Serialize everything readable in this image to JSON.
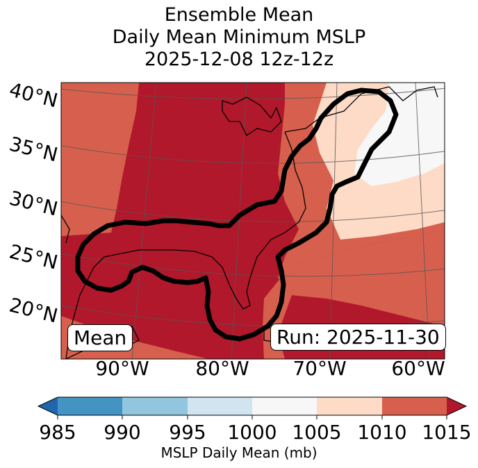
{
  "title": {
    "line1": "Ensemble Mean",
    "line2": "Daily Mean Minimum MSLP",
    "line3": "2025-12-08 12z-12z"
  },
  "map": {
    "lat_labels": [
      "40°N",
      "35°N",
      "30°N",
      "25°N",
      "20°N"
    ],
    "lon_labels": [
      "90°W",
      "80°W",
      "70°W",
      "60°W"
    ],
    "mean_label": "Mean",
    "run_label": "Run: 2025-11-30"
  },
  "colorbar": {
    "ticks": [
      "985",
      "990",
      "995",
      "1000",
      "1005",
      "1010",
      "1015"
    ],
    "label": "MSLP Daily Mean (mb)",
    "colors": {
      "below": "#2166ac",
      "985-990": "#4393c3",
      "990-995": "#92c5de",
      "995-1000": "#d1e5f0",
      "1000-1005": "#f7f7f7",
      "1005-1010": "#fddbc7",
      "1010-1015": "#d6604d",
      "above": "#b2182b"
    }
  }
}
